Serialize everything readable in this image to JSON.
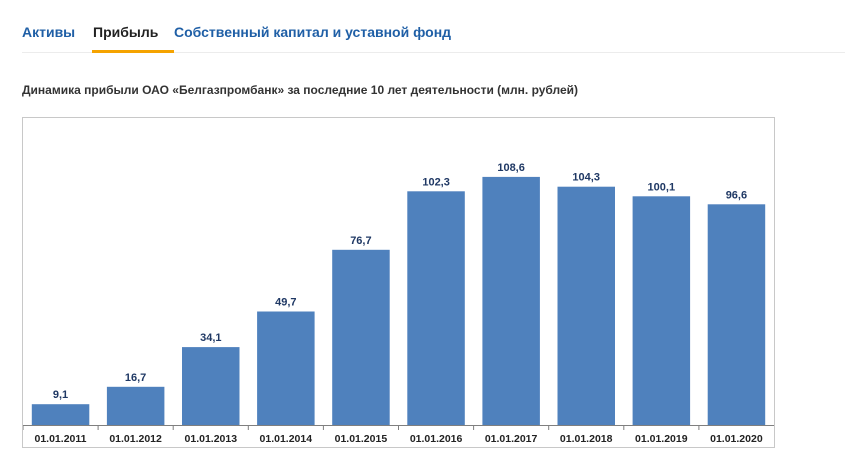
{
  "tabs": [
    {
      "label": "Активы"
    },
    {
      "label": "Прибыль"
    },
    {
      "label": "Собственный капитал и уставной фонд"
    }
  ],
  "accent_color": "#f5a300",
  "link_color": "#1f5fa6",
  "bar_color": "#4f81bd",
  "chart_data": {
    "type": "bar",
    "title": "Динамика прибыли ОАО «Белгазпромбанк» за последние 10 лет деятельности (млн. рублей)",
    "categories": [
      "01.01.2011",
      "01.01.2012",
      "01.01.2013",
      "01.01.2014",
      "01.01.2015",
      "01.01.2016",
      "01.01.2017",
      "01.01.2018",
      "01.01.2019",
      "01.01.2020"
    ],
    "values": [
      9.1,
      16.7,
      34.1,
      49.7,
      76.7,
      102.3,
      108.6,
      104.3,
      100.1,
      96.6
    ],
    "value_labels": [
      "9,1",
      "16,7",
      "34,1",
      "49,7",
      "76,7",
      "102,3",
      "108,6",
      "104,3",
      "100,1",
      "96,6"
    ],
    "xlabel": "",
    "ylabel": "",
    "ylim": [
      0,
      130
    ]
  }
}
